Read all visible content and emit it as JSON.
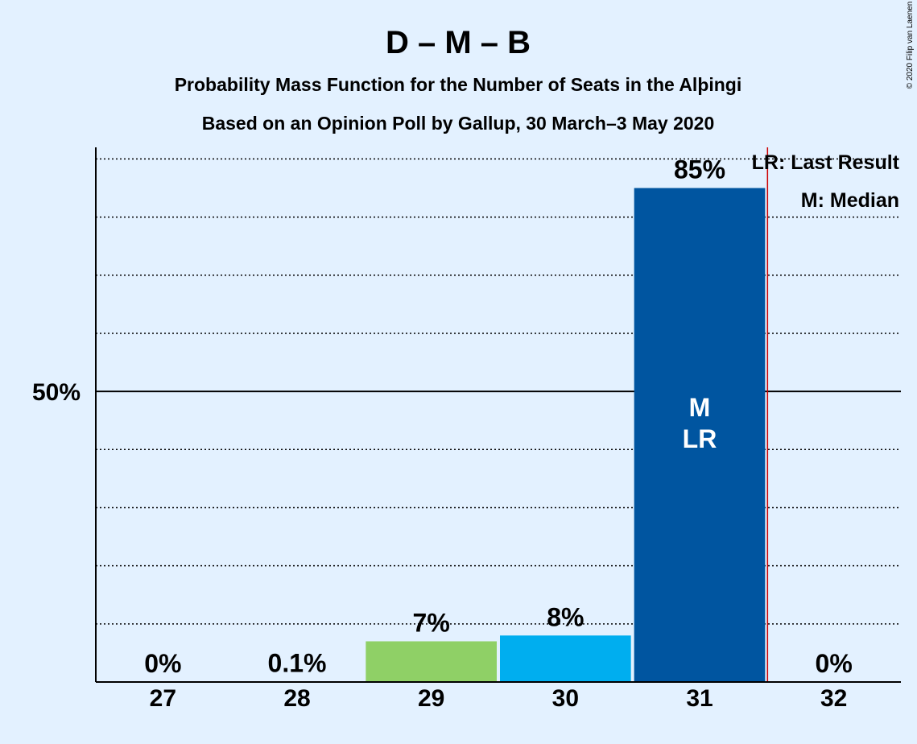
{
  "chart_data": {
    "type": "bar",
    "title": "D – M – B",
    "subtitle": "Probability Mass Function for the Number of Seats in the Alþingi",
    "subtitle2": "Based on an Opinion Poll by Gallup, 30 March–3 May 2020",
    "copyright": "© 2020 Filip van Laenen",
    "categories": [
      "27",
      "28",
      "29",
      "30",
      "31",
      "32"
    ],
    "values": [
      0,
      0.1,
      7,
      8,
      85,
      0
    ],
    "value_labels": [
      "0%",
      "0.1%",
      "7%",
      "8%",
      "85%",
      "0%"
    ],
    "bar_colors": [
      "#8fd066",
      "#8fd066",
      "#8fd066",
      "#00aeef",
      "#0055a0",
      "#0055a0"
    ],
    "ylim": [
      0,
      92
    ],
    "y_major_tick": 50,
    "y_major_label": "50%",
    "y_minor_step": 10,
    "last_result": "31",
    "median": "31",
    "median_marker": "M",
    "last_result_marker": "LR",
    "legend": [
      "LR: Last Result",
      "M: Median"
    ],
    "last_result_line_color": "#cc0000"
  }
}
